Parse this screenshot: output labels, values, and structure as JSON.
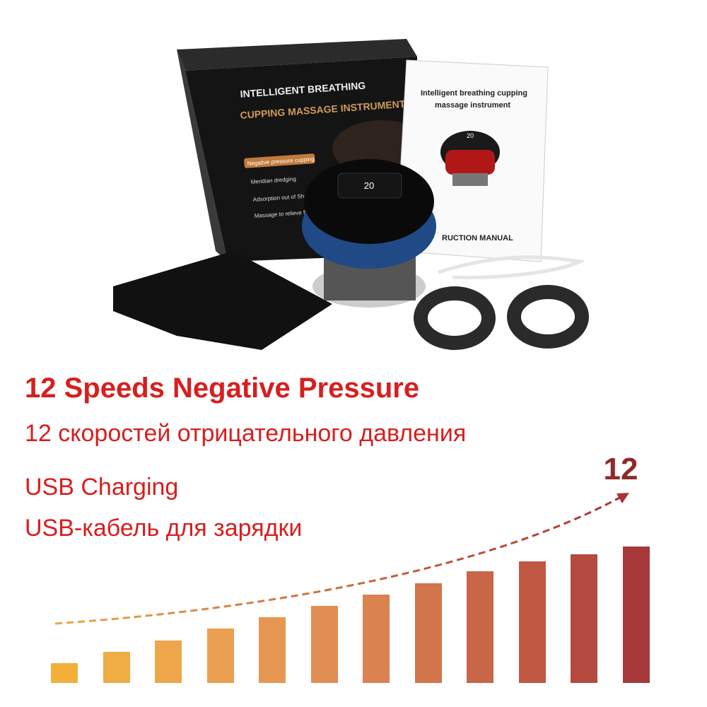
{
  "box": {
    "title_lines": [
      "INTELLIGENT BREATHING",
      "CUPPING MASSAGE INSTRUMENT"
    ],
    "features": [
      "Negative pressure cupping",
      "Meridian dredging",
      "Adsorption out of Sha",
      "Massage to relieve fatigue"
    ]
  },
  "manual": {
    "title_lines": [
      "Intelligent breathing cupping",
      "massage instrument"
    ],
    "display": "20",
    "footer": "RUCTION MANUAL"
  },
  "device": {
    "display": "20"
  },
  "headlines": [
    "12 Speeds Negative Pressure",
    "12 скоростей отрицательного давления",
    "USB Charging",
    "USB-кабель для зарядки"
  ],
  "speed_label": "12"
}
